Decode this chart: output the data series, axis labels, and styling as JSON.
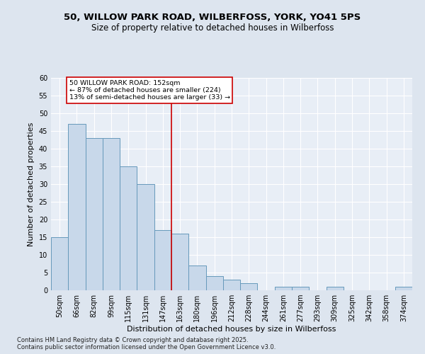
{
  "title1": "50, WILLOW PARK ROAD, WILBERFOSS, YORK, YO41 5PS",
  "title2": "Size of property relative to detached houses in Wilberfoss",
  "xlabel": "Distribution of detached houses by size in Wilberfoss",
  "ylabel": "Number of detached properties",
  "footer": "Contains HM Land Registry data © Crown copyright and database right 2025.\nContains public sector information licensed under the Open Government Licence v3.0.",
  "bins": [
    "50sqm",
    "66sqm",
    "82sqm",
    "99sqm",
    "115sqm",
    "131sqm",
    "147sqm",
    "163sqm",
    "180sqm",
    "196sqm",
    "212sqm",
    "228sqm",
    "244sqm",
    "261sqm",
    "277sqm",
    "293sqm",
    "309sqm",
    "325sqm",
    "342sqm",
    "358sqm",
    "374sqm"
  ],
  "values": [
    15,
    47,
    43,
    43,
    35,
    30,
    17,
    16,
    7,
    4,
    3,
    2,
    0,
    1,
    1,
    0,
    1,
    0,
    0,
    0,
    1
  ],
  "bar_color": "#c8d8ea",
  "bar_edge_color": "#6699bb",
  "property_line_color": "#cc0000",
  "annotation_text": "50 WILLOW PARK ROAD: 152sqm\n← 87% of detached houses are smaller (224)\n13% of semi-detached houses are larger (33) →",
  "annotation_box_color": "#ffffff",
  "annotation_box_edge_color": "#cc0000",
  "ylim": [
    0,
    60
  ],
  "yticks": [
    0,
    5,
    10,
    15,
    20,
    25,
    30,
    35,
    40,
    45,
    50,
    55,
    60
  ],
  "bg_color": "#dde5ef",
  "plot_bg_color": "#e8eef6",
  "grid_color": "#ffffff",
  "title_fontsize": 9.5,
  "subtitle_fontsize": 8.5,
  "tick_fontsize": 7,
  "label_fontsize": 8,
  "footer_fontsize": 6
}
